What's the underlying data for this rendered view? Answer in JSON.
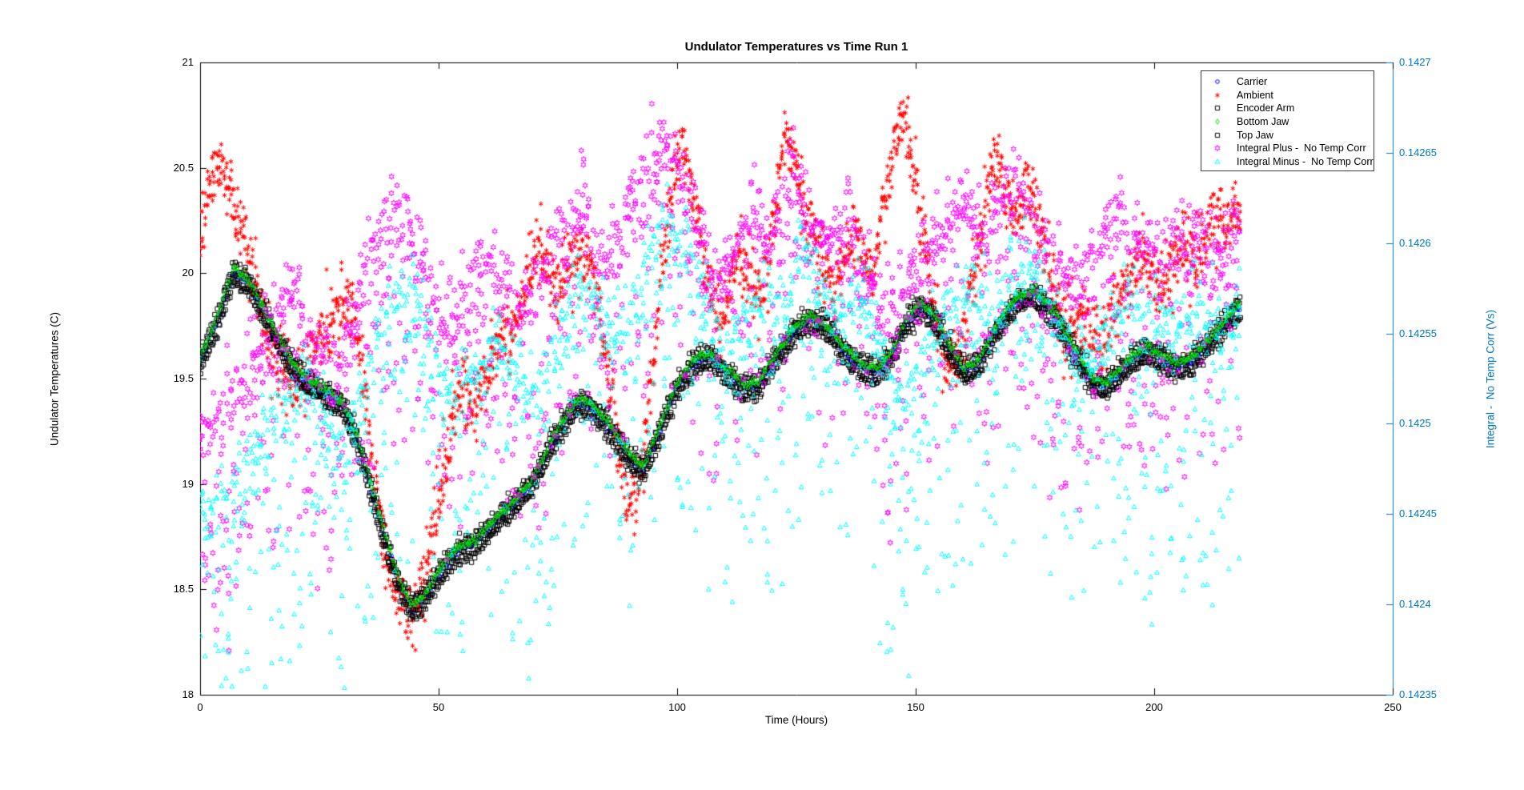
{
  "title": "Undulator Temperatures vs Time Run 1",
  "axes": {
    "x": {
      "label": "Time (Hours)",
      "min": 0,
      "max": 250,
      "ticks": [
        "0",
        "50",
        "100",
        "150",
        "200",
        "250"
      ]
    },
    "y_left": {
      "label": "Undulator Temperatures (C)",
      "min": 18,
      "max": 21,
      "color": "#000000",
      "ticks": [
        "18",
        "18.5",
        "19",
        "19.5",
        "20",
        "20.5",
        "21"
      ]
    },
    "y_right": {
      "label": "Integral -  No Temp Corr (Vs)",
      "min": 0.14235,
      "max": 0.1427,
      "color": "#0077c4",
      "ticks": [
        "0.14235",
        "0.1424",
        "0.14245",
        "0.1425",
        "0.14255",
        "0.1426",
        "0.14265",
        "0.1427"
      ]
    }
  },
  "legend": {
    "entries": [
      {
        "label": "Carrier",
        "marker": "circle",
        "color": "#0000ff"
      },
      {
        "label": "Ambient",
        "marker": "asterisk",
        "color": "#ff0000"
      },
      {
        "label": "Encoder Arm",
        "marker": "square",
        "color": "#000000"
      },
      {
        "label": "Bottom Jaw",
        "marker": "diamond",
        "color": "#00e000"
      },
      {
        "label": "Top Jaw",
        "marker": "square",
        "color": "#000000"
      },
      {
        "label": "Integral Plus -  No Temp Corr",
        "marker": "hexagram",
        "color": "#ff00ff"
      },
      {
        "label": "Integral Minus -  No Temp Corr",
        "marker": "triangle",
        "color": "#00ffff"
      }
    ]
  },
  "chart_data": {
    "type": "scatter",
    "x_range": [
      0,
      218
    ],
    "trends": {
      "band": [
        [
          0,
          19.6
        ],
        [
          3,
          19.75
        ],
        [
          7,
          20.02
        ],
        [
          10,
          19.97
        ],
        [
          14,
          19.8
        ],
        [
          18,
          19.62
        ],
        [
          22,
          19.5
        ],
        [
          26,
          19.45
        ],
        [
          30,
          19.38
        ],
        [
          33,
          19.22
        ],
        [
          36,
          18.98
        ],
        [
          39,
          18.73
        ],
        [
          42,
          18.52
        ],
        [
          44.5,
          18.42
        ],
        [
          47,
          18.47
        ],
        [
          50,
          18.58
        ],
        [
          54,
          18.7
        ],
        [
          58,
          18.74
        ],
        [
          62,
          18.84
        ],
        [
          66,
          18.92
        ],
        [
          70,
          19.03
        ],
        [
          74,
          19.22
        ],
        [
          79,
          19.4
        ],
        [
          82,
          19.38
        ],
        [
          86,
          19.28
        ],
        [
          90,
          19.14
        ],
        [
          93,
          19.08
        ],
        [
          96,
          19.25
        ],
        [
          100,
          19.48
        ],
        [
          104,
          19.6
        ],
        [
          107,
          19.62
        ],
        [
          110,
          19.55
        ],
        [
          114,
          19.47
        ],
        [
          117,
          19.48
        ],
        [
          121,
          19.63
        ],
        [
          125,
          19.75
        ],
        [
          128,
          19.8
        ],
        [
          131,
          19.76
        ],
        [
          135,
          19.65
        ],
        [
          139,
          19.56
        ],
        [
          142,
          19.55
        ],
        [
          145,
          19.62
        ],
        [
          148,
          19.78
        ],
        [
          151,
          19.86
        ],
        [
          154,
          19.8
        ],
        [
          157,
          19.66
        ],
        [
          160,
          19.55
        ],
        [
          163,
          19.58
        ],
        [
          167,
          19.75
        ],
        [
          171,
          19.88
        ],
        [
          175,
          19.92
        ],
        [
          179,
          19.82
        ],
        [
          183,
          19.65
        ],
        [
          187,
          19.5
        ],
        [
          190,
          19.48
        ],
        [
          193,
          19.55
        ],
        [
          196,
          19.62
        ],
        [
          199,
          19.65
        ],
        [
          202,
          19.6
        ],
        [
          205,
          19.57
        ],
        [
          208,
          19.6
        ],
        [
          211,
          19.67
        ],
        [
          214,
          19.75
        ],
        [
          218,
          19.86
        ]
      ],
      "ambient": [
        [
          0,
          20.15
        ],
        [
          2,
          20.45
        ],
        [
          4,
          20.5
        ],
        [
          6,
          20.38
        ],
        [
          8,
          20.28
        ],
        [
          10,
          20.05
        ],
        [
          12,
          19.9
        ],
        [
          14,
          19.72
        ],
        [
          17,
          19.55
        ],
        [
          20,
          19.48
        ],
        [
          23,
          19.6
        ],
        [
          26,
          19.72
        ],
        [
          29,
          19.85
        ],
        [
          31,
          19.9
        ],
        [
          33,
          19.72
        ],
        [
          35,
          19.35
        ],
        [
          37,
          18.95
        ],
        [
          39,
          18.65
        ],
        [
          41,
          18.5
        ],
        [
          43,
          18.42
        ],
        [
          45,
          18.38
        ],
        [
          47,
          18.55
        ],
        [
          49,
          18.8
        ],
        [
          51,
          19.05
        ],
        [
          53,
          19.3
        ],
        [
          55,
          19.45
        ],
        [
          57,
          19.38
        ],
        [
          59,
          19.45
        ],
        [
          61,
          19.6
        ],
        [
          63,
          19.72
        ],
        [
          65,
          19.7
        ],
        [
          67,
          19.8
        ],
        [
          69,
          20.0
        ],
        [
          71,
          20.1
        ],
        [
          73,
          20.0
        ],
        [
          75,
          19.88
        ],
        [
          77,
          20.0
        ],
        [
          79,
          20.1
        ],
        [
          81,
          20.08
        ],
        [
          83,
          19.9
        ],
        [
          85,
          19.6
        ],
        [
          87,
          19.28
        ],
        [
          89,
          18.98
        ],
        [
          91,
          18.88
        ],
        [
          93,
          19.15
        ],
        [
          95,
          19.6
        ],
        [
          97,
          20.05
        ],
        [
          99,
          20.4
        ],
        [
          101,
          20.62
        ],
        [
          103,
          20.4
        ],
        [
          105,
          20.15
        ],
        [
          107,
          19.88
        ],
        [
          109,
          19.78
        ],
        [
          111,
          19.92
        ],
        [
          113,
          20.1
        ],
        [
          115,
          20.02
        ],
        [
          117,
          19.9
        ],
        [
          119,
          20.05
        ],
        [
          121,
          20.4
        ],
        [
          123,
          20.68
        ],
        [
          125,
          20.5
        ],
        [
          127,
          20.28
        ],
        [
          129,
          20.15
        ],
        [
          131,
          20.02
        ],
        [
          133,
          19.92
        ],
        [
          135,
          20.05
        ],
        [
          137,
          20.18
        ],
        [
          139,
          20.1
        ],
        [
          141,
          19.98
        ],
        [
          143,
          20.25
        ],
        [
          145,
          20.55
        ],
        [
          147,
          20.73
        ],
        [
          149,
          20.58
        ],
        [
          151,
          20.3
        ],
        [
          153,
          19.98
        ],
        [
          155,
          19.72
        ],
        [
          157,
          19.55
        ],
        [
          159,
          19.6
        ],
        [
          161,
          19.82
        ],
        [
          163,
          20.1
        ],
        [
          165,
          20.38
        ],
        [
          167,
          20.58
        ],
        [
          169,
          20.32
        ],
        [
          171,
          20.28
        ],
        [
          173,
          20.42
        ],
        [
          175,
          20.32
        ],
        [
          177,
          20.1
        ],
        [
          179,
          19.88
        ],
        [
          181,
          19.72
        ],
        [
          183,
          19.78
        ],
        [
          185,
          19.82
        ],
        [
          187,
          19.72
        ],
        [
          189,
          19.66
        ],
        [
          191,
          19.76
        ],
        [
          193,
          19.88
        ],
        [
          195,
          20.0
        ],
        [
          197,
          20.08
        ],
        [
          199,
          20.02
        ],
        [
          201,
          19.94
        ],
        [
          203,
          20.0
        ],
        [
          205,
          20.1
        ],
        [
          207,
          20.14
        ],
        [
          209,
          20.08
        ],
        [
          211,
          20.18
        ],
        [
          213,
          20.28
        ],
        [
          215,
          20.22
        ],
        [
          217,
          20.3
        ],
        [
          218,
          20.26
        ]
      ],
      "integral_plus": [
        [
          0,
          0.142495
        ],
        [
          4,
          0.142505
        ],
        [
          8,
          0.142515
        ],
        [
          12,
          0.142535
        ],
        [
          16,
          0.142555
        ],
        [
          20,
          0.14257
        ],
        [
          24,
          0.142545
        ],
        [
          28,
          0.142525
        ],
        [
          32,
          0.142555
        ],
        [
          36,
          0.142595
        ],
        [
          40,
          0.142615
        ],
        [
          44,
          0.142605
        ],
        [
          48,
          0.14257
        ],
        [
          52,
          0.142555
        ],
        [
          56,
          0.14257
        ],
        [
          60,
          0.142585
        ],
        [
          64,
          0.14257
        ],
        [
          68,
          0.14256
        ],
        [
          72,
          0.14258
        ],
        [
          76,
          0.142605
        ],
        [
          80,
          0.142615
        ],
        [
          84,
          0.14259
        ],
        [
          88,
          0.1426
        ],
        [
          92,
          0.142635
        ],
        [
          96,
          0.14265
        ],
        [
          100,
          0.14264
        ],
        [
          104,
          0.142605
        ],
        [
          108,
          0.14258
        ],
        [
          112,
          0.142595
        ],
        [
          116,
          0.142615
        ],
        [
          120,
          0.1426
        ],
        [
          124,
          0.14264
        ],
        [
          128,
          0.14261
        ],
        [
          132,
          0.142595
        ],
        [
          136,
          0.142615
        ],
        [
          140,
          0.14258
        ],
        [
          144,
          0.142555
        ],
        [
          148,
          0.14257
        ],
        [
          152,
          0.14259
        ],
        [
          156,
          0.142605
        ],
        [
          160,
          0.14262
        ],
        [
          164,
          0.1426
        ],
        [
          168,
          0.14262
        ],
        [
          172,
          0.14263
        ],
        [
          176,
          0.142605
        ],
        [
          180,
          0.14258
        ],
        [
          184,
          0.14257
        ],
        [
          188,
          0.14259
        ],
        [
          192,
          0.14261
        ],
        [
          196,
          0.1426
        ],
        [
          200,
          0.14259
        ],
        [
          204,
          0.1426
        ],
        [
          208,
          0.142605
        ],
        [
          212,
          0.142595
        ],
        [
          218,
          0.1426
        ]
      ]
    },
    "series": [
      {
        "name": "Carrier",
        "marker": "circle",
        "color": "#0000ff",
        "axis": "left",
        "trend": "band",
        "offset": -0.015,
        "t_step": 0.2,
        "per_step": 1,
        "v_jitter": 0.01,
        "tail": 0,
        "up": 0
      },
      {
        "name": "Ambient",
        "marker": "asterisk",
        "color": "#ff0000",
        "axis": "left",
        "trend": "ambient",
        "offset": 0,
        "t_step": 0.5,
        "per_step": 5,
        "v_jitter": 0.085,
        "tail": 0,
        "up": 0
      },
      {
        "name": "Encoder Arm",
        "marker": "square",
        "color": "#000000",
        "axis": "left",
        "trend": "band",
        "offset": 0.012,
        "t_step": 0.2,
        "per_step": 1,
        "v_jitter": 0.022,
        "tail": 0,
        "up": 0
      },
      {
        "name": "Bottom Jaw",
        "marker": "diamond",
        "color": "#00e000",
        "axis": "left",
        "trend": "band",
        "offset": 0,
        "t_step": 0.2,
        "per_step": 1,
        "v_jitter": 0.01,
        "tail": 0,
        "up": 0
      },
      {
        "name": "Top Jaw",
        "marker": "square",
        "color": "#000000",
        "axis": "left",
        "trend": "band",
        "offset": -0.058,
        "t_step": 0.2,
        "per_step": 1,
        "v_jitter": 0.016,
        "tail": 0,
        "up": 0
      },
      {
        "name": "Integral Plus -  No Temp Corr",
        "marker": "hexagram",
        "color": "#ff00ff",
        "axis": "right",
        "trend": "integral_plus",
        "offset": 0,
        "t_step": 0.55,
        "per_step": 5,
        "v_jitter": 8e-06,
        "tail": 0.00013,
        "up": 2.2e-05
      },
      {
        "name": "Integral Minus -  No Temp Corr",
        "marker": "triangle",
        "color": "#00ffff",
        "axis": "right",
        "trend": "integral_plus",
        "offset": -4.2e-05,
        "t_shift": 2,
        "t_step": 0.55,
        "per_step": 5,
        "v_jitter": 8e-06,
        "tail": 0.000155,
        "up": 1.8e-05
      }
    ]
  }
}
